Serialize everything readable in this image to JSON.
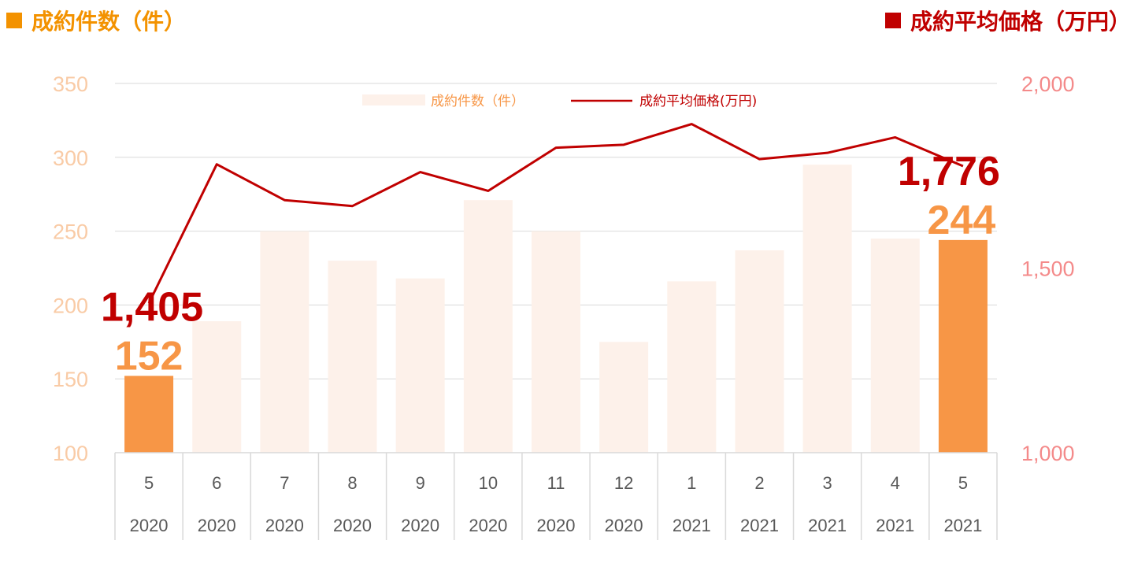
{
  "header": {
    "left_title": "成約件数（件）",
    "right_title": "成約平均価格（万円）"
  },
  "colors": {
    "bar_highlight": "#F79646",
    "bar_muted": "#FDF1EA",
    "line": "#C00000",
    "left_axis": "#F9CBA6",
    "right_axis": "#F48A8A",
    "left_header": "#F39200",
    "right_header": "#C00000",
    "grid": "#D9D9D9"
  },
  "chart_data": {
    "type": "bar",
    "categories": [
      "5",
      "6",
      "7",
      "8",
      "9",
      "10",
      "11",
      "12",
      "1",
      "2",
      "3",
      "4",
      "5"
    ],
    "years": [
      "2020",
      "2020",
      "2020",
      "2020",
      "2020",
      "2020",
      "2020",
      "2020",
      "2021",
      "2021",
      "2021",
      "2021",
      "2021"
    ],
    "series": [
      {
        "name": "成約件数（件）",
        "type": "bar",
        "axis": "left",
        "values": [
          152,
          189,
          250,
          230,
          218,
          271,
          250,
          175,
          216,
          237,
          295,
          245,
          244
        ],
        "highlight_indices": [
          0,
          12
        ]
      },
      {
        "name": "成約平均価格(万円)",
        "type": "line",
        "axis": "right",
        "values": [
          1405,
          1781,
          1684,
          1668,
          1760,
          1709,
          1826,
          1834,
          1890,
          1795,
          1812,
          1854,
          1776
        ]
      }
    ],
    "left_axis": {
      "ylim": [
        100,
        350
      ],
      "ticks": [
        "100",
        "150",
        "200",
        "250",
        "300",
        "350"
      ]
    },
    "right_axis": {
      "ylim": [
        1000,
        2000
      ],
      "ticks": [
        "1,000",
        "1,500",
        "2,000"
      ]
    },
    "data_labels": [
      {
        "index": 0,
        "count": "152",
        "price": "1,405"
      },
      {
        "index": 12,
        "count": "244",
        "price": "1,776"
      }
    ],
    "legend": {
      "position": "top-center",
      "bar_label": "成約件数（件）",
      "line_label": "成約平均価格(万円)"
    },
    "grid": true
  }
}
